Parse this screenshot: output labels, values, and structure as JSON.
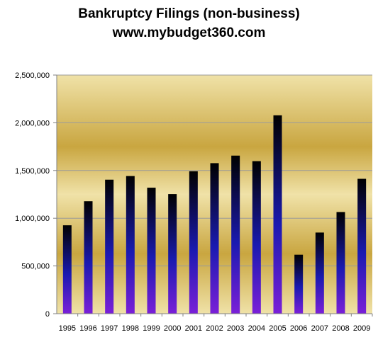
{
  "chart_data": {
    "type": "bar",
    "title": "Bankruptcy Filings (non-business)",
    "subtitle": "www.mybudget360.com",
    "xlabel": "",
    "ylabel": "",
    "categories": [
      "1995",
      "1996",
      "1997",
      "1998",
      "1999",
      "2000",
      "2001",
      "2002",
      "2003",
      "2004",
      "2005",
      "2006",
      "2007",
      "2008",
      "2009"
    ],
    "values": [
      926000,
      1178000,
      1404000,
      1442000,
      1320000,
      1253000,
      1492000,
      1577000,
      1656000,
      1598000,
      2078000,
      618000,
      850000,
      1065000,
      1413000
    ],
    "ylim": [
      0,
      2500000
    ],
    "yticks": [
      "0",
      "500,000",
      "1,000,000",
      "1,500,000",
      "2,000,000",
      "2,500,000"
    ],
    "ytick_values": [
      0,
      500000,
      1000000,
      1500000,
      2000000,
      2500000
    ],
    "grid": true,
    "legend": "none",
    "colors": {
      "bar_top": "#000000",
      "bar_mid": "#1a1ab0",
      "bar_bottom": "#7a20d8",
      "plot_light": "#f0e2a8",
      "plot_gold": "#c9a640",
      "gridline": "#9a9a9a",
      "axis": "#808080"
    }
  }
}
